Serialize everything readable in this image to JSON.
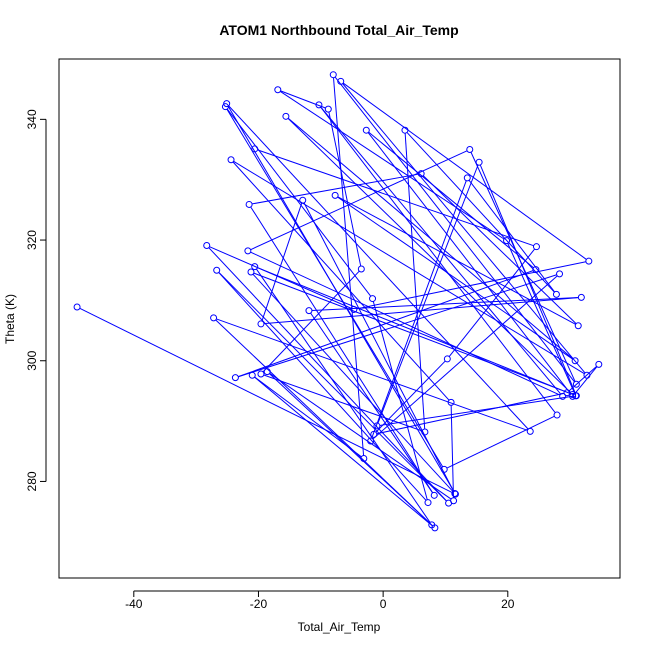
{
  "chart_data": {
    "type": "line",
    "title": "ATOM1 Northbound Total_Air_Temp",
    "xlabel": "Total_Air_Temp",
    "ylabel": "Theta (K)",
    "xlim": [
      -52,
      38
    ],
    "ylim": [
      264,
      350
    ],
    "xticks": [
      -40,
      -20,
      0,
      20
    ],
    "yticks": [
      280,
      300,
      320,
      340
    ],
    "grid": false,
    "legend": "none",
    "series_color": "#0000ff",
    "marker": "open-circle",
    "x": [
      -49.1,
      11.6,
      -25.1,
      23.6,
      -27.2,
      8.3,
      -21.0,
      -3.1,
      -8.0,
      31.0,
      13.9,
      -21.7,
      28.8,
      -10.3,
      27.9,
      9.8,
      -25.3,
      -1.7,
      7.2,
      -26.7,
      10.5,
      -28.3,
      -4.7,
      33.0,
      -6.8,
      32.7,
      -24.4,
      10.9,
      11.3,
      -18.6,
      7.8,
      -20.6,
      30.4,
      -15.6,
      30.8,
      -7.7,
      31.3,
      6.1,
      -21.5,
      8.2,
      -11.9,
      31.8,
      -19.6,
      -12.9,
      11.5,
      -21.2,
      31.0,
      15.4,
      -1.0,
      30.9,
      19.8,
      -16.9,
      -8.8,
      -3.5,
      -19.6,
      6.7,
      3.5,
      27.8,
      13.5,
      -2.0,
      28.3,
      -23.7,
      24.5,
      -2.7,
      30.4,
      34.6,
      29.5,
      -1.5,
      10.3,
      24.6,
      -20.6
    ],
    "y": [
      308.9,
      277.9,
      342.6,
      288.3,
      307.1,
      272.3,
      297.6,
      283.8,
      347.4,
      296.1,
      335.0,
      318.2,
      294.1,
      342.4,
      291.0,
      282.0,
      342.1,
      310.3,
      276.5,
      315.0,
      276.4,
      319.1,
      308.5,
      316.5,
      346.3,
      297.6,
      333.3,
      293.1,
      276.8,
      298.2,
      272.8,
      315.6,
      294.4,
      340.5,
      300.0,
      327.4,
      305.8,
      331.0,
      325.9,
      277.7,
      308.3,
      310.5,
      306.1,
      326.6,
      278.0,
      314.7,
      294.2,
      332.9,
      289.2,
      294.2,
      319.9,
      344.9,
      341.7,
      315.2,
      297.8,
      288.2,
      338.2,
      311.0,
      330.3,
      286.7,
      314.4,
      297.2,
      315.1,
      338.2,
      294.1,
      299.4,
      294.7,
      287.8,
      300.3,
      318.9,
      335.1
    ]
  }
}
